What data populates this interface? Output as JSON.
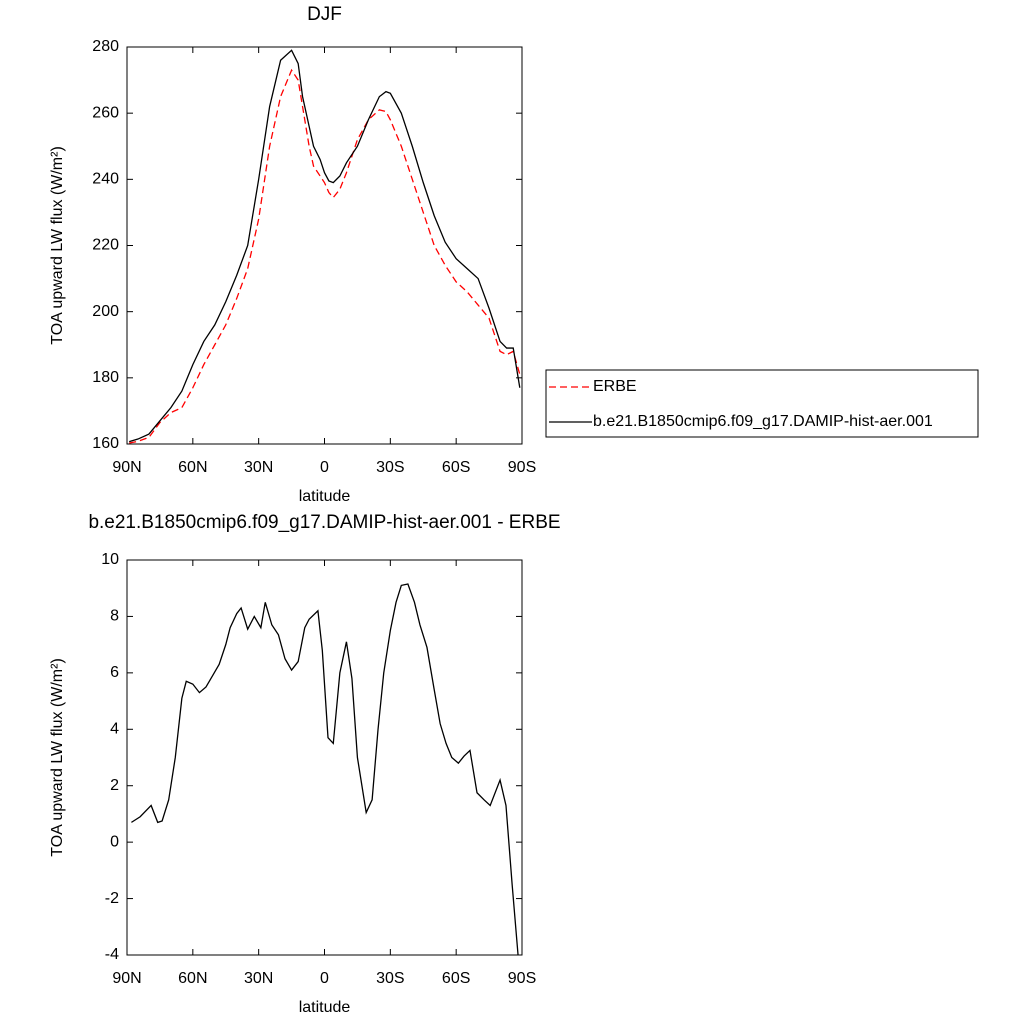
{
  "chart_data": [
    {
      "type": "line",
      "title": "DJF",
      "x_label": "latitude",
      "y_label": "TOA upward LW flux (W/m²)",
      "x": [
        89,
        85,
        80,
        75,
        70,
        65,
        60,
        55,
        50,
        45,
        40,
        35,
        30,
        25,
        20,
        15,
        12,
        10,
        7,
        5,
        2,
        0,
        -2,
        -4,
        -7,
        -10,
        -15,
        -20,
        -25,
        -28,
        -30,
        -35,
        -40,
        -45,
        -50,
        -55,
        -60,
        -65,
        -70,
        -75,
        -80,
        -83,
        -86,
        -89
      ],
      "series": [
        {
          "name": "ERBE",
          "color": "#ff0000",
          "line_style": "dashed",
          "values": [
            160.3,
            160.8,
            162,
            166.5,
            169.5,
            171,
            177,
            184,
            190,
            196,
            204,
            213,
            228,
            250,
            265,
            273,
            270,
            262,
            250,
            244,
            241,
            239,
            236,
            234.5,
            237,
            242,
            252,
            258,
            261,
            260.5,
            258,
            250,
            240,
            230,
            220,
            214,
            209,
            206,
            202,
            198,
            188,
            187,
            188,
            181
          ]
        },
        {
          "name": "b.e21.B1850cmip6.f09_g17.DAMIP-hist-aer.001",
          "color": "#000000",
          "line_style": "solid",
          "values": [
            160.7,
            161.5,
            163,
            167,
            171,
            176,
            184,
            191,
            196,
            203,
            211,
            220,
            240,
            262,
            276,
            279,
            275,
            265,
            256,
            250,
            246,
            242,
            239.5,
            239,
            241,
            245,
            250,
            258,
            265,
            266.5,
            266,
            260,
            250,
            239,
            229,
            221,
            216,
            213,
            210,
            201,
            191,
            189,
            189,
            177
          ]
        }
      ],
      "xlim": [
        90,
        -90
      ],
      "xticks": [
        {
          "value": 90,
          "label": "90N"
        },
        {
          "value": 60,
          "label": "60N"
        },
        {
          "value": 30,
          "label": "30N"
        },
        0,
        {
          "value": -30,
          "label": "30S"
        },
        {
          "value": -60,
          "label": "60S"
        },
        {
          "value": -90,
          "label": "90S"
        }
      ],
      "ylim": [
        160,
        280
      ],
      "yticks": [
        160,
        180,
        200,
        220,
        240,
        260,
        280
      ],
      "legend": "right"
    },
    {
      "type": "line",
      "title": "b.e21.B1850cmip6.f09_g17.DAMIP-hist-aer.001 - ERBE",
      "x_label": "latitude",
      "y_label": "TOA upward LW flux (W/m²)",
      "x": [
        88,
        84,
        79,
        76,
        74,
        71,
        68,
        65,
        63,
        60,
        57,
        54,
        51,
        48,
        45,
        43,
        40,
        38,
        35,
        32,
        29,
        27,
        24,
        21,
        18,
        15,
        12,
        9,
        7,
        3,
        1,
        -1.6,
        -4,
        -7,
        -10,
        -12.5,
        -15,
        -19,
        -21.7,
        -24.4,
        -27,
        -30,
        -32.6,
        -35,
        -38,
        -41,
        -43.5,
        -46.7,
        -50,
        -52.7,
        -55.4,
        -58,
        -61,
        -63.6,
        -66.3,
        -69.5,
        -72.7,
        -75.5,
        -80,
        -82.7,
        -85.5,
        -88.2
      ],
      "values": [
        0.7,
        0.9,
        1.3,
        0.7,
        0.75,
        1.5,
        3,
        5.1,
        5.7,
        5.6,
        5.3,
        5.5,
        5.9,
        6.3,
        7,
        7.6,
        8.1,
        8.3,
        7.55,
        8,
        7.6,
        8.5,
        7.7,
        7.35,
        6.5,
        6.1,
        6.4,
        7.6,
        7.9,
        8.2,
        6.8,
        3.7,
        3.5,
        6,
        7.1,
        5.8,
        3,
        1.05,
        1.5,
        4,
        6,
        7.5,
        8.5,
        9.1,
        9.15,
        8.5,
        7.7,
        6.9,
        5.4,
        4.2,
        3.5,
        3,
        2.8,
        3.05,
        3.25,
        1.75,
        1.5,
        1.3,
        2.2,
        1.3,
        -1.5,
        -4
      ],
      "color": "#000000",
      "xlim": [
        90,
        -90
      ],
      "xticks": [
        {
          "value": 90,
          "label": "90N"
        },
        {
          "value": 60,
          "label": "60N"
        },
        {
          "value": 30,
          "label": "30N"
        },
        0,
        {
          "value": -30,
          "label": "30S"
        },
        {
          "value": -60,
          "label": "60S"
        },
        {
          "value": -90,
          "label": "90S"
        }
      ],
      "ylim": [
        -4,
        10
      ],
      "yticks": [
        -4,
        -2,
        0,
        2,
        4,
        6,
        8,
        10
      ]
    }
  ]
}
